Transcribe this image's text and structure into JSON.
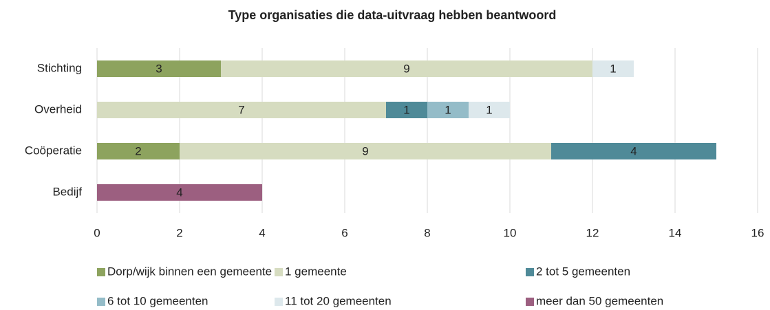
{
  "chart_data": {
    "type": "stacked_barh",
    "title": "Type organisaties die data-uitvraag hebben beantwoord",
    "categories": [
      "Stichting",
      "Overheid",
      "Coöperatie",
      "Bedijf"
    ],
    "series": [
      {
        "name": "Dorp/wijk binnen een gemeente",
        "color": "#8da35e",
        "values": [
          3,
          null,
          2,
          null
        ]
      },
      {
        "name": "1 gemeente",
        "color": "#d6dcc0",
        "values": [
          9,
          7,
          9,
          null
        ]
      },
      {
        "name": "2 tot 5 gemeenten",
        "color": "#4f8a98",
        "values": [
          null,
          1,
          4,
          null
        ]
      },
      {
        "name": "6 tot 10 gemeenten",
        "color": "#94bcc8",
        "values": [
          null,
          1,
          null,
          null
        ]
      },
      {
        "name": "11 tot 20 gemeenten",
        "color": "#dde8ec",
        "values": [
          1,
          1,
          null,
          null
        ]
      },
      {
        "name": "meer dan 50 gemeenten",
        "color": "#9c5f80",
        "values": [
          null,
          null,
          null,
          4
        ]
      }
    ],
    "xlim": [
      0,
      16
    ],
    "xticks": [
      0,
      2,
      4,
      6,
      8,
      10,
      12,
      14,
      16
    ],
    "grid": true,
    "legend": "bottom"
  }
}
